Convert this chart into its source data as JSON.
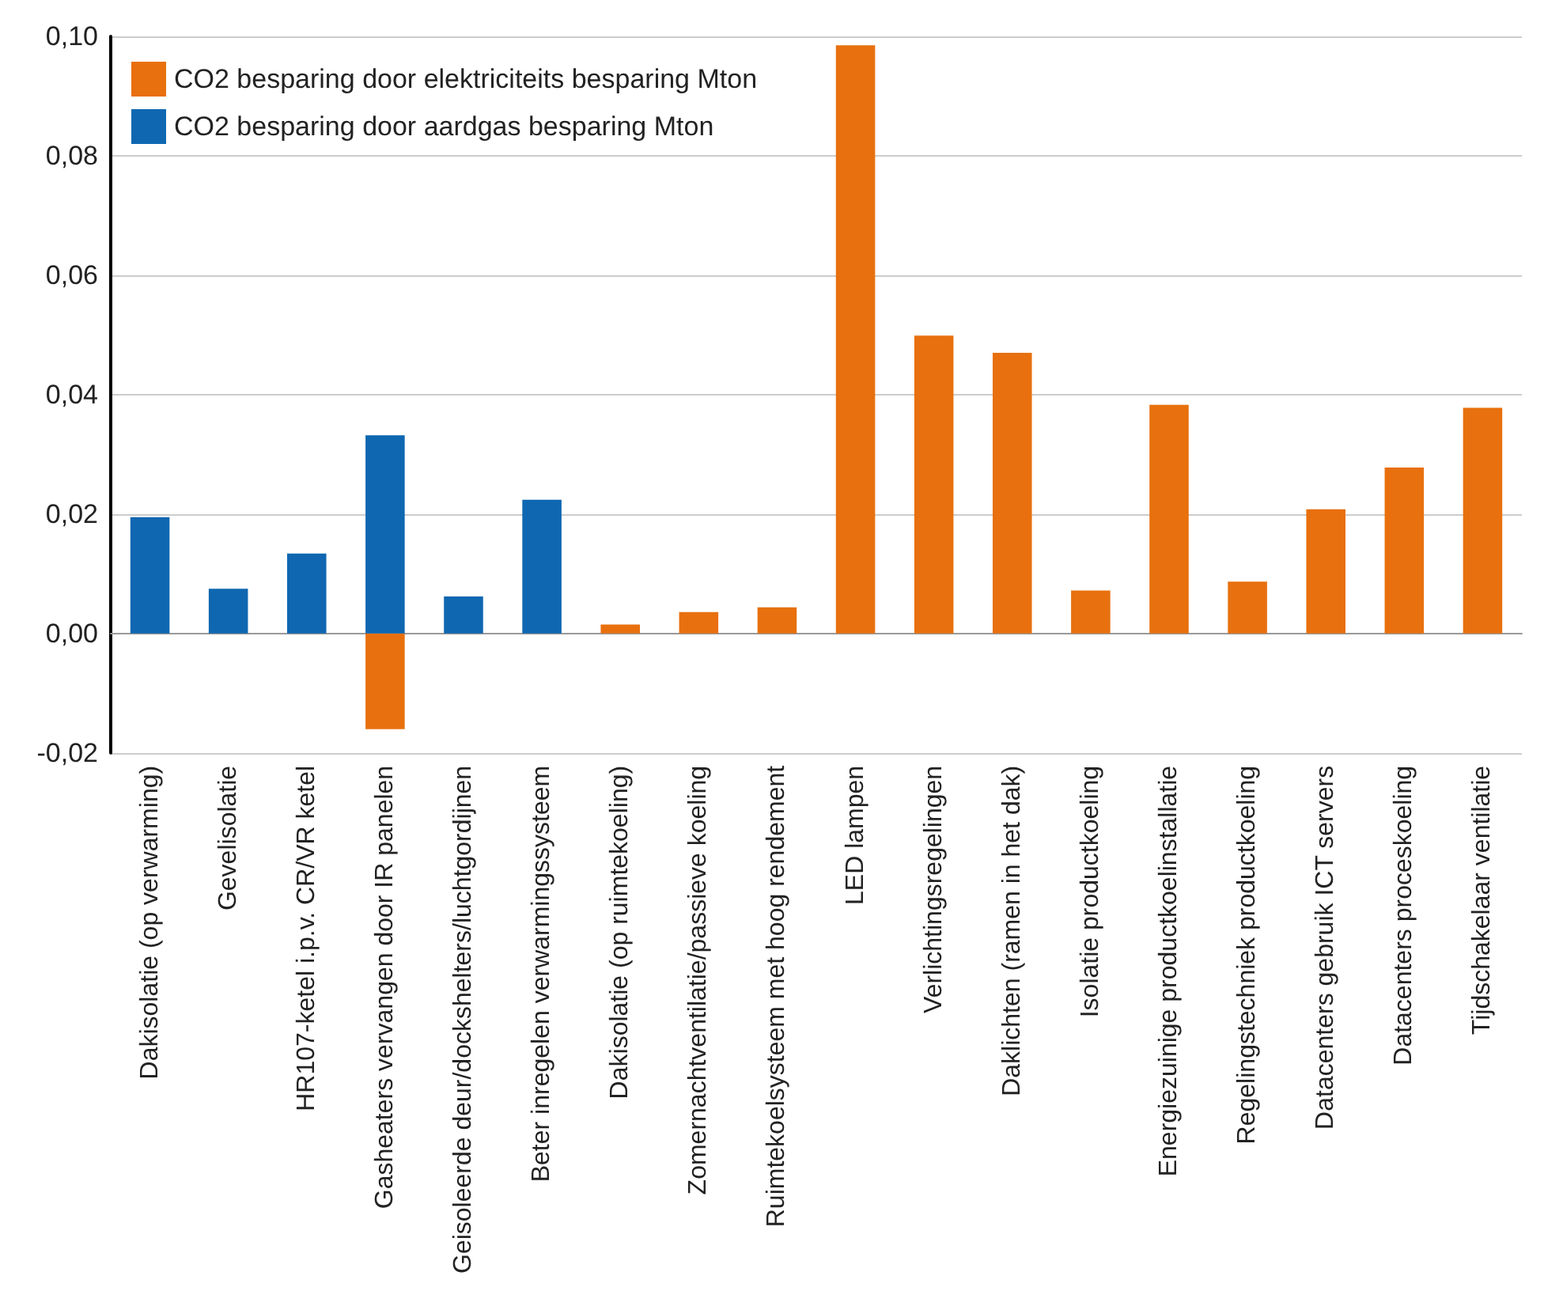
{
  "chart_data": {
    "type": "bar",
    "stacked": true,
    "categories": [
      "Dakisolatie (op verwarming)",
      "Gevelisolatie",
      "HR107-ketel i.p.v. CR/VR ketel",
      "Gasheaters vervangen door IR panelen",
      "Geisoleerde deur/dockshelters/luchtgordijnen",
      "Beter inregelen verwarmingssysteem",
      "Dakisolatie (op ruimtekoeling)",
      "Zomernachtventilatie/passieve koeling",
      "Ruimtekoelsysteem met hoog rendement",
      "LED lampen",
      "Verlichtingsregelingen",
      "Daklichten (ramen in het dak)",
      "Isolatie productkoeling",
      "Energiezuinige productkoelinstallatie",
      "Regelingstechniek productkoeling",
      "Datacenters gebruik ICT servers",
      "Datacenters proceskoeling",
      "Tijdschakelaar ventilatie"
    ],
    "series": [
      {
        "name": "CO2 besparing door elektriciteits besparing Mton",
        "color": "#e8700e",
        "values": [
          null,
          null,
          null,
          -0.016,
          null,
          null,
          0.0015,
          0.0036,
          0.0044,
          0.0985,
          0.0499,
          0.047,
          0.0072,
          0.0383,
          0.0087,
          0.0208,
          0.0278,
          0.0378
        ]
      },
      {
        "name": "CO2 besparing door aardgas besparing Mton",
        "color": "#0f67b1",
        "values": [
          0.0195,
          0.0075,
          0.0134,
          0.0332,
          0.0062,
          0.0224,
          null,
          null,
          null,
          null,
          null,
          null,
          null,
          null,
          null,
          null,
          null,
          null
        ]
      }
    ],
    "ylim": [
      -0.02,
      0.1
    ],
    "yticks": [
      {
        "value": -0.02,
        "label": "-0,02"
      },
      {
        "value": 0,
        "label": "0,00"
      },
      {
        "value": 0.02,
        "label": "0,02"
      },
      {
        "value": 0.04,
        "label": "0,04"
      },
      {
        "value": 0.06,
        "label": "0,06"
      },
      {
        "value": 0.08,
        "label": "0,08"
      },
      {
        "value": 0.1,
        "label": "0,10"
      }
    ],
    "grid": "y",
    "legend": "top left"
  }
}
